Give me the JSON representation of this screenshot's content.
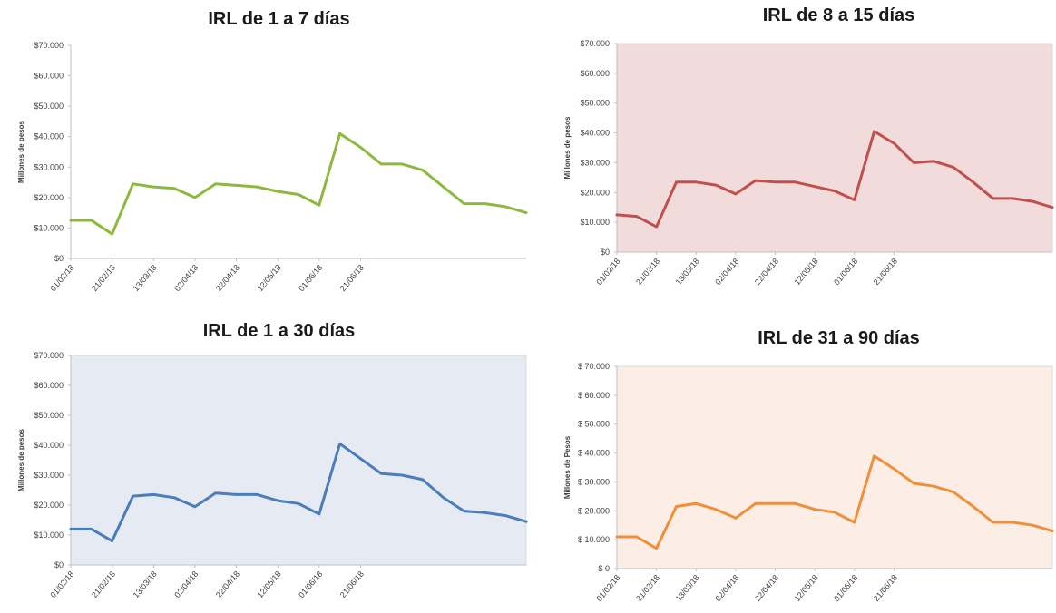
{
  "chart_data": [
    {
      "type": "line",
      "title": "IRL de 1 a 7 días",
      "xlabel": "",
      "ylabel": "Millones de pesos",
      "ylim": [
        0,
        70000
      ],
      "yticks": [
        0,
        10000,
        20000,
        30000,
        40000,
        50000,
        60000,
        70000
      ],
      "ytick_labels": [
        "$0",
        "$10.000",
        "$20.000",
        "$30.000",
        "$40.000",
        "$50.000",
        "$60.000",
        "$70.000"
      ],
      "xtick_labels": [
        "01/02/18",
        "21/02/18",
        "13/03/18",
        "02/04/18",
        "22/04/18",
        "12/05/18",
        "01/06/18",
        "21/06/18"
      ],
      "xtick_positions": [
        0,
        2,
        4,
        6,
        8,
        10,
        12,
        14
      ],
      "grid": false,
      "plot_bg": "#ffffff",
      "line_color": "#8db93e",
      "series": [
        {
          "values": [
            12500,
            12500,
            8000,
            24500,
            23500,
            23000,
            20000,
            24500,
            24000,
            23500,
            22000,
            21000,
            17500,
            41000,
            36500,
            31000,
            31000,
            29000,
            23500,
            18000,
            18000,
            17000,
            15000
          ]
        }
      ]
    },
    {
      "type": "line",
      "title": "IRL de 8 a 15 días",
      "xlabel": "",
      "ylabel": "Millones de pesos",
      "ylim": [
        0,
        70000
      ],
      "yticks": [
        0,
        10000,
        20000,
        30000,
        40000,
        50000,
        60000,
        70000
      ],
      "ytick_labels": [
        "$0",
        "$10.000",
        "$20.000",
        "$30.000",
        "$40.000",
        "$50.000",
        "$60.000",
        "$70.000"
      ],
      "xtick_labels": [
        "01/02/18",
        "21/02/18",
        "13/03/18",
        "02/04/18",
        "22/04/18",
        "12/05/18",
        "01/06/18",
        "21/06/18"
      ],
      "xtick_positions": [
        0,
        2,
        4,
        6,
        8,
        10,
        12,
        14
      ],
      "grid": false,
      "plot_bg": "#f2dcdb",
      "line_color": "#c0504d",
      "series": [
        {
          "values": [
            12500,
            12000,
            8500,
            23500,
            23500,
            22500,
            19500,
            24000,
            23500,
            23500,
            22000,
            20500,
            17500,
            40500,
            36500,
            30000,
            30500,
            28500,
            23500,
            18000,
            18000,
            17000,
            15000
          ]
        }
      ]
    },
    {
      "type": "line",
      "title": "IRL de 1 a 30 días",
      "xlabel": "",
      "ylabel": "Millones de pesos",
      "ylim": [
        0,
        70000
      ],
      "yticks": [
        0,
        10000,
        20000,
        30000,
        40000,
        50000,
        60000,
        70000
      ],
      "ytick_labels": [
        "$0",
        "$10.000",
        "$20.000",
        "$30.000",
        "$40.000",
        "$50.000",
        "$60.000",
        "$70.000"
      ],
      "xtick_labels": [
        "01/02/18",
        "21/02/18",
        "13/03/18",
        "02/04/18",
        "22/04/18",
        "12/05/18",
        "01/06/18",
        "21/06/18"
      ],
      "xtick_positions": [
        0,
        2,
        4,
        6,
        8,
        10,
        12,
        14
      ],
      "grid": false,
      "plot_bg": "#e6ebf3",
      "line_color": "#4a7ebb",
      "series": [
        {
          "values": [
            12000,
            12000,
            8000,
            23000,
            23500,
            22500,
            19500,
            24000,
            23500,
            23500,
            21500,
            20500,
            17000,
            40500,
            35500,
            30500,
            30000,
            28500,
            22500,
            18000,
            17500,
            16500,
            14500
          ]
        }
      ]
    },
    {
      "type": "line",
      "title": "IRL de 31 a 90 días",
      "xlabel": "",
      "ylabel": "Millones de Pesos",
      "ylim": [
        0,
        70000
      ],
      "yticks": [
        0,
        10000,
        20000,
        30000,
        40000,
        50000,
        60000,
        70000
      ],
      "ytick_labels": [
        "$ 0",
        "$ 10.000",
        "$ 20.000",
        "$ 30.000",
        "$ 40.000",
        "$ 50.000",
        "$ 60.000",
        "$ 70.000"
      ],
      "xtick_labels": [
        "01/02/18",
        "21/02/18",
        "13/03/18",
        "02/04/18",
        "22/04/18",
        "12/05/18",
        "01/06/18",
        "21/06/18"
      ],
      "xtick_positions": [
        0,
        2,
        4,
        6,
        8,
        10,
        12,
        14
      ],
      "grid": false,
      "plot_bg": "#fdeee5",
      "line_color": "#ee8f3b",
      "series": [
        {
          "values": [
            11000,
            11000,
            7000,
            21500,
            22500,
            20500,
            17500,
            22500,
            22500,
            22500,
            20500,
            19500,
            16000,
            39000,
            34500,
            29500,
            28500,
            26500,
            21500,
            16000,
            16000,
            15000,
            13000
          ]
        }
      ]
    }
  ]
}
